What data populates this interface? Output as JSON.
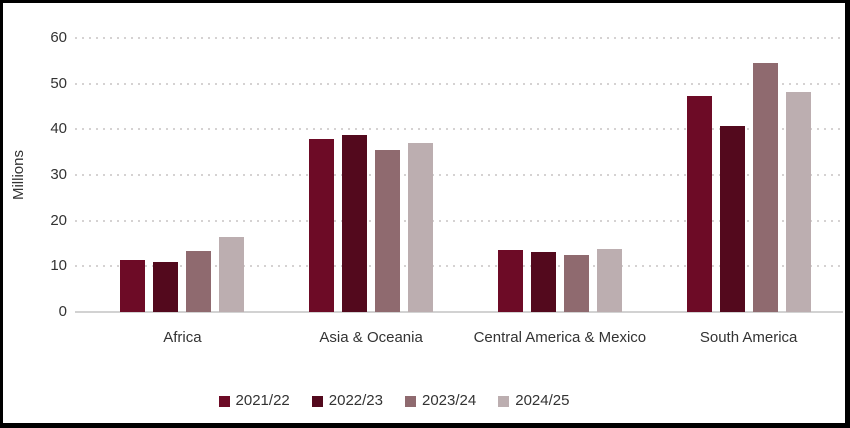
{
  "frame": {
    "background": "#FFFFFF",
    "border_color": "#000000"
  },
  "chart_data": {
    "type": "bar",
    "title": "",
    "xlabel": "",
    "ylabel": "Millions",
    "ylim": [
      0,
      60
    ],
    "yticks": [
      0,
      10,
      20,
      30,
      40,
      50,
      60
    ],
    "grid": "horizontal-dotted",
    "gridline_color": "#D5D2D2",
    "axis_line_color": "#D2D2D2",
    "text_color": "#333333",
    "legend_position": "bottom-center",
    "categories": [
      "Africa",
      "Asia & Oceania",
      "Central America & Mexico",
      "South America"
    ],
    "series": [
      {
        "name": "2021/22",
        "color": "#6D0B26",
        "values": [
          11.4,
          37.8,
          13.6,
          47.3
        ]
      },
      {
        "name": "2022/23",
        "color": "#53091D",
        "values": [
          11.0,
          38.8,
          13.2,
          40.8
        ]
      },
      {
        "name": "2023/24",
        "color": "#8F6A6F",
        "values": [
          13.4,
          35.4,
          12.5,
          54.5
        ]
      },
      {
        "name": "2024/25",
        "color": "#BCAEB0",
        "values": [
          16.5,
          37.0,
          13.8,
          48.1
        ]
      }
    ]
  }
}
